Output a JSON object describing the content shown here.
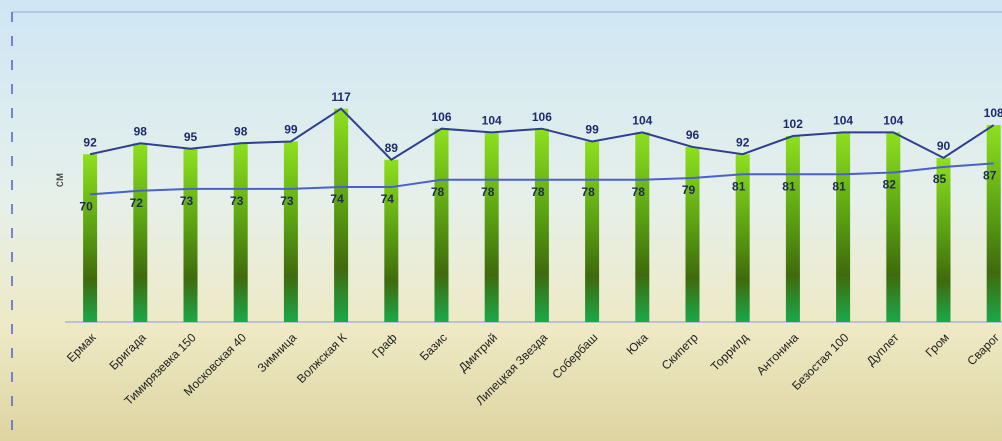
{
  "chart_data": {
    "type": "bar",
    "y_label": "см",
    "categories": [
      "Ермак",
      "Бригада",
      "Тимирязевка 150",
      "Московская 40",
      "Зимница",
      "Волжская К",
      "Граф",
      "Базис",
      "Дмитрий",
      "Липецкая Звезда",
      "Собербаш",
      "Юка",
      "Скипетр",
      "Торрилд",
      "Антонина",
      "Безостая 100",
      "Дуплет",
      "Гром",
      "Сварог"
    ],
    "series": [
      {
        "type": "bar",
        "color": "#7ccc1a",
        "line_color": "#2f3f8f",
        "label_color": "#1f2a6e",
        "values": [
          92,
          98,
          95,
          98,
          99,
          117,
          89,
          106,
          104,
          106,
          99,
          104,
          96,
          92,
          102,
          104,
          104,
          90,
          108
        ]
      },
      {
        "type": "line",
        "color": "#4a60cc",
        "label_color": "#1f2a50",
        "values": [
          70,
          72,
          73,
          73,
          73,
          74,
          74,
          78,
          78,
          78,
          78,
          78,
          79,
          81,
          81,
          81,
          82,
          85,
          87
        ]
      }
    ],
    "ylim": [
      0,
      170
    ]
  }
}
